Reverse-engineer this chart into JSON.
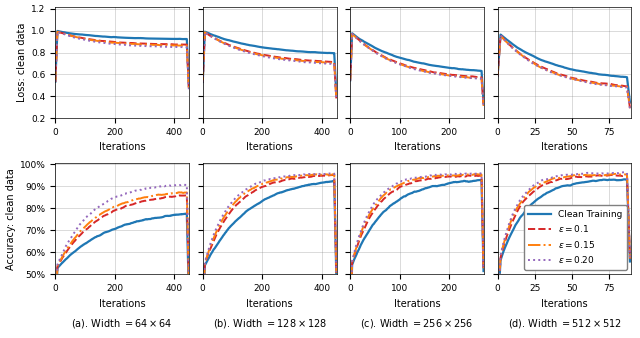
{
  "colors": {
    "clean": "#1f77b4",
    "eps01": "#d62728",
    "eps015": "#ff7f0e",
    "eps020": "#9467bd"
  },
  "ylabel_loss": "Loss: clean data",
  "ylabel_acc": "Accuracy: clean data",
  "xlabel": "Iterations",
  "loss_ylim": [
    0.2,
    1.22
  ],
  "loss_yticks": [
    0.2,
    0.4,
    0.6,
    0.8,
    1.0,
    1.2
  ],
  "acc_yticks": [
    0.5,
    0.6,
    0.7,
    0.8,
    0.9,
    1.0
  ],
  "panel_params": [
    {
      "n": 450,
      "loss": {
        "clean": [
          1.0,
          0.92,
          3.0
        ],
        "e01": [
          1.0,
          0.87,
          3.5
        ],
        "e015": [
          1.0,
          0.86,
          3.5
        ],
        "e020": [
          1.0,
          0.845,
          3.5
        ]
      },
      "acc": {
        "clean": [
          0.52,
          0.8,
          2.5
        ],
        "e01": [
          0.52,
          0.875,
          3.2
        ],
        "e015": [
          0.52,
          0.885,
          3.5
        ],
        "e020": [
          0.52,
          0.915,
          4.0
        ]
      }
    },
    {
      "n": 450,
      "loss": {
        "clean": [
          1.0,
          0.775,
          2.5
        ],
        "e01": [
          1.0,
          0.695,
          2.8
        ],
        "e015": [
          1.0,
          0.685,
          2.8
        ],
        "e020": [
          1.0,
          0.675,
          2.8
        ]
      },
      "acc": {
        "clean": [
          0.52,
          0.945,
          3.0
        ],
        "e01": [
          0.52,
          0.955,
          4.5
        ],
        "e015": [
          0.52,
          0.958,
          5.0
        ],
        "e020": [
          0.52,
          0.96,
          5.5
        ]
      }
    },
    {
      "n": 270,
      "loss": {
        "clean": [
          0.99,
          0.6,
          2.5
        ],
        "e01": [
          0.99,
          0.545,
          2.8
        ],
        "e015": [
          0.99,
          0.535,
          2.8
        ],
        "e020": [
          0.99,
          0.53,
          2.8
        ]
      },
      "acc": {
        "clean": [
          0.52,
          0.935,
          4.0
        ],
        "e01": [
          0.52,
          0.95,
          5.5
        ],
        "e015": [
          0.52,
          0.955,
          6.0
        ],
        "e020": [
          0.52,
          0.958,
          6.5
        ]
      }
    },
    {
      "n": 90,
      "loss": {
        "clean": [
          0.99,
          0.535,
          2.5
        ],
        "e01": [
          0.99,
          0.46,
          2.8
        ],
        "e015": [
          0.99,
          0.45,
          2.8
        ],
        "e020": [
          0.99,
          0.445,
          2.8
        ]
      },
      "acc": {
        "clean": [
          0.52,
          0.935,
          5.0
        ],
        "e01": [
          0.52,
          0.95,
          6.5
        ],
        "e015": [
          0.52,
          0.955,
          7.0
        ],
        "e020": [
          0.52,
          0.96,
          7.5
        ]
      }
    }
  ],
  "subtitle_labels": [
    "(a). Width $= 64 \\times 64$",
    "(b). Width $= 128 \\times 128$",
    "(c). Width $= 256 \\times 256$",
    "(d). Width $= 512 \\times 512$"
  ]
}
